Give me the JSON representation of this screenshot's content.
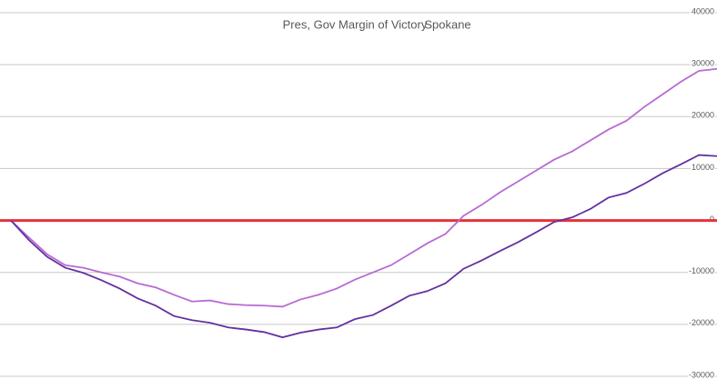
{
  "chart_data": {
    "type": "line",
    "title": "Pres, Gov Margin of Victory",
    "subtitle": "Spokane",
    "series": [
      {
        "name": "Pres",
        "color": "#b86ad4",
        "values": [
          0,
          -3300,
          -6500,
          -8600,
          -9100,
          -10000,
          -10800,
          -12100,
          -12900,
          -14300,
          -15600,
          -15400,
          -16100,
          -16300,
          -16400,
          -16600,
          -15200,
          -14300,
          -13100,
          -11400,
          -10000,
          -8600,
          -6500,
          -4400,
          -2600,
          900,
          3000,
          5400,
          7500,
          9600,
          11700,
          13300,
          15400,
          17500,
          19200,
          21900,
          24300,
          26700,
          28800,
          29200
        ]
      },
      {
        "name": "Gov",
        "color": "#6331a0",
        "values": [
          0,
          -3800,
          -7000,
          -9100,
          -10100,
          -11500,
          -13100,
          -15000,
          -16400,
          -18400,
          -19200,
          -19700,
          -20600,
          -21000,
          -21500,
          -22500,
          -21600,
          -21000,
          -20600,
          -19000,
          -18200,
          -16400,
          -14500,
          -13600,
          -12100,
          -9300,
          -7700,
          -5900,
          -4200,
          -2300,
          -300,
          600,
          2200,
          4400,
          5300,
          7100,
          9100,
          10800,
          12600,
          12400
        ]
      }
    ],
    "ylim": [
      -30000,
      40000
    ],
    "yticks": [
      -30000,
      -20000,
      -10000,
      0,
      10000,
      20000,
      30000,
      40000
    ],
    "grid": true,
    "reference_line": {
      "value": 0,
      "color": "#e8303a"
    }
  }
}
